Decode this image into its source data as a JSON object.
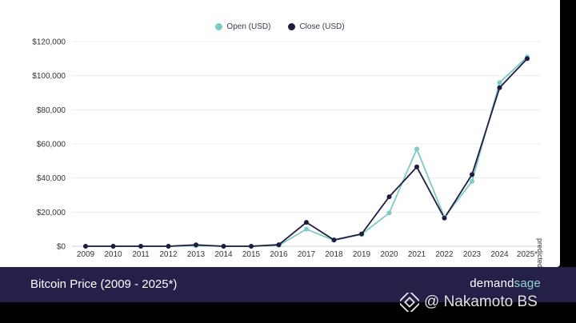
{
  "chart_data": {
    "type": "line",
    "xlabel": "",
    "ylabel": "",
    "x": [
      "2009",
      "2010",
      "2011",
      "2012",
      "2013",
      "2014",
      "2015",
      "2016",
      "2017",
      "2018",
      "2019",
      "2020",
      "2021",
      "2022",
      "2023",
      "2024",
      "2025*"
    ],
    "y_ticks": [
      "$0",
      "$20,000",
      "$40,000",
      "$60,000",
      "$80,000",
      "$100,000",
      "$120,000"
    ],
    "ylim": [
      0,
      120000
    ],
    "grid": true,
    "legend_position": "top-center",
    "series": [
      {
        "name": "Open (USD)",
        "color": "#7ccac4",
        "values": [
          0,
          0,
          0,
          0,
          300,
          0,
          0,
          500,
          10000,
          3500,
          7000,
          19500,
          57000,
          17000,
          38000,
          96000,
          111000
        ]
      },
      {
        "name": "Close (USD)",
        "color": "#1f1b43",
        "values": [
          0,
          0,
          0,
          0,
          800,
          0,
          0,
          900,
          14000,
          3700,
          7200,
          29000,
          46500,
          16500,
          42000,
          93000,
          110000
        ]
      }
    ]
  },
  "side_note": "predicted*",
  "footer": {
    "title": "Bitcoin Price (2009 - 2025*)",
    "brand_left": "demand",
    "brand_right": "sage"
  },
  "watermark": {
    "text": "@ Nakamoto BS",
    "icon": "binance-diamond-icon"
  }
}
